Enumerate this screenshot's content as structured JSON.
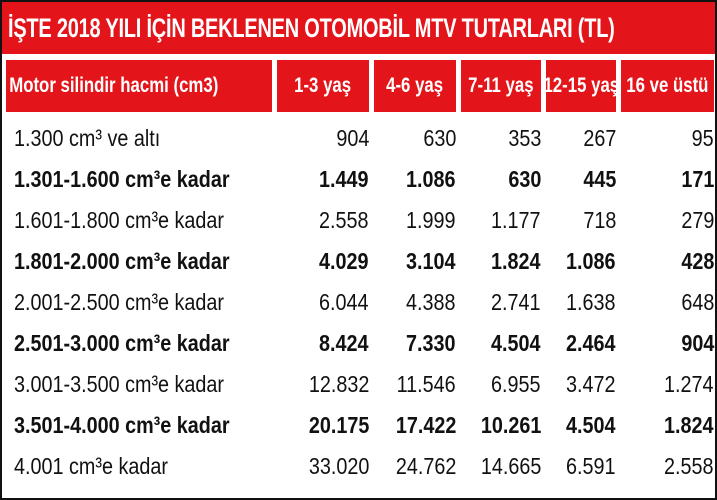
{
  "title": "İŞTE 2018 YILI İÇİN BEKLENEN OTOMOBİL MTV TUTARLARI (TL)",
  "table": {
    "header": [
      "Motor silindir hacmi (cm3)",
      "1-3 yaş",
      "4-6 yaş",
      "7-11 yaş",
      "12-15 yaş",
      "16 ve üstü"
    ],
    "rows": [
      [
        "1.300 cm³ ve altı",
        "904",
        "630",
        "353",
        "267",
        "95"
      ],
      [
        "1.301-1.600 cm³e kadar",
        "1.449",
        "1.086",
        "630",
        "445",
        "171"
      ],
      [
        "1.601-1.800 cm³e kadar",
        "2.558",
        "1.999",
        "1.177",
        "718",
        "279"
      ],
      [
        "1.801-2.000 cm³e kadar",
        "4.029",
        "3.104",
        "1.824",
        "1.086",
        "428"
      ],
      [
        "2.001-2.500 cm³e kadar",
        "6.044",
        "4.388",
        "2.741",
        "1.638",
        "648"
      ],
      [
        "2.501-3.000 cm³e kadar",
        "8.424",
        "7.330",
        "4.504",
        "2.464",
        "904"
      ],
      [
        "3.001-3.500 cm³e kadar",
        "12.832",
        "11.546",
        "6.955",
        "3.472",
        "1.274"
      ],
      [
        "3.501-4.000 cm³e kadar",
        "20.175",
        "17.422",
        "10.261",
        "4.504",
        "1.824"
      ],
      [
        "4.001 cm³e kadar",
        "33.020",
        "24.762",
        "14.665",
        "6.591",
        "2.558"
      ]
    ]
  }
}
